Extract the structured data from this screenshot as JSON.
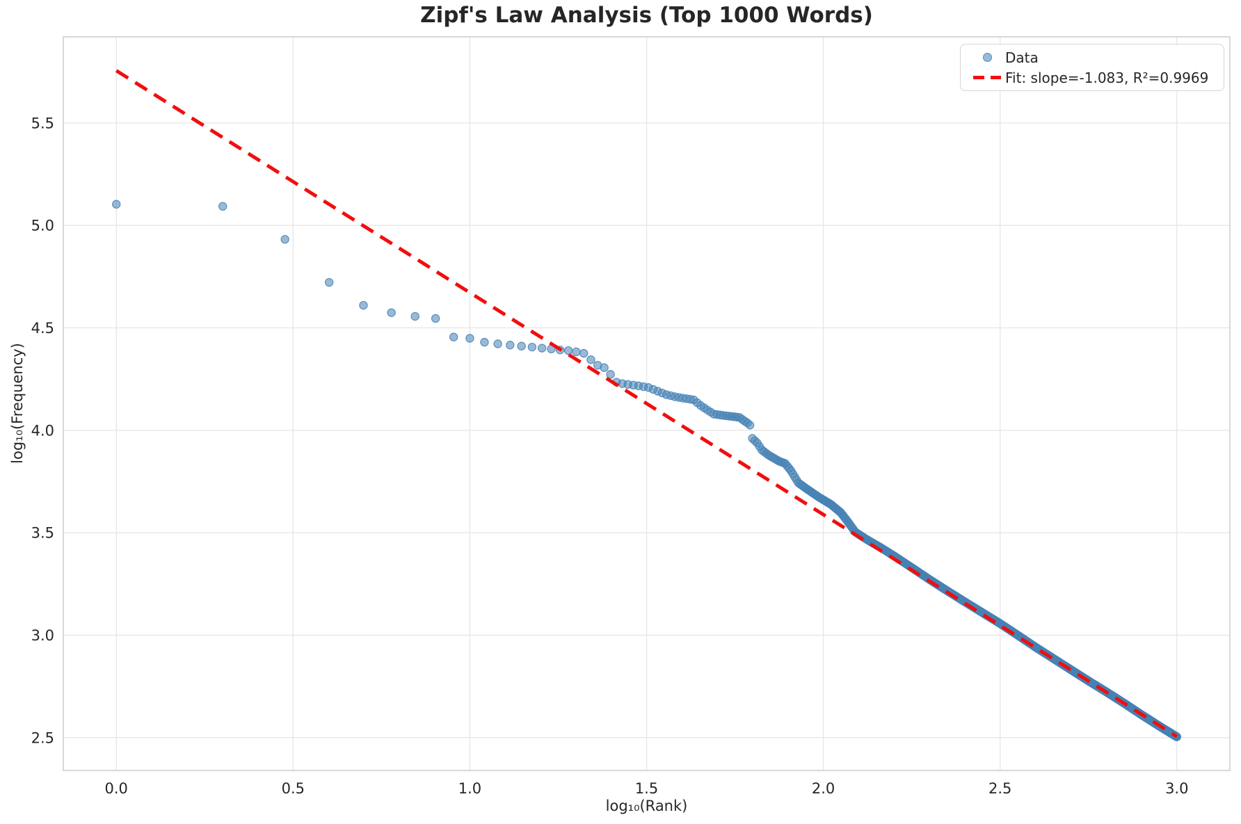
{
  "chart_data": {
    "type": "scatter",
    "title": "Zipf's Law Analysis (Top 1000 Words)",
    "xlabel": "log₁₀(Rank)",
    "ylabel": "log₁₀(Frequency)",
    "xlim": [
      -0.15,
      3.15
    ],
    "ylim": [
      2.34,
      5.92
    ],
    "grid": true,
    "x_ticks": {
      "values": [
        0.0,
        0.5,
        1.0,
        1.5,
        2.0,
        2.5,
        3.0
      ],
      "labels": [
        "0.0",
        "0.5",
        "1.0",
        "1.5",
        "2.0",
        "2.5",
        "3.0"
      ]
    },
    "y_ticks": {
      "values": [
        2.5,
        3.0,
        3.5,
        4.0,
        4.5,
        5.0,
        5.5
      ],
      "labels": [
        "2.5",
        "3.0",
        "3.5",
        "4.0",
        "4.5",
        "5.0",
        "5.5"
      ]
    },
    "legend": {
      "position": "upper right",
      "entries": [
        {
          "label": "Data",
          "marker": "circle",
          "color": "#4682B4"
        },
        {
          "label": "Fit: slope=-1.083, R²=0.9969",
          "marker": "dashed-line",
          "color": "#FF0000"
        }
      ]
    },
    "series": [
      {
        "name": "Data",
        "kind": "scatter",
        "color": "#4682B4",
        "alpha": 0.55,
        "n_points": 1000,
        "x_rule": "x = log10(rank) for rank = 1..1000",
        "anchor_points": [
          [
            0.0,
            5.103
          ],
          [
            0.301,
            5.093
          ],
          [
            0.477,
            4.932
          ],
          [
            0.602,
            4.722
          ],
          [
            0.699,
            4.61
          ],
          [
            0.778,
            4.574
          ],
          [
            0.845,
            4.556
          ],
          [
            0.903,
            4.546
          ],
          [
            0.954,
            4.455
          ],
          [
            1.0,
            4.449
          ],
          [
            1.041,
            4.43
          ],
          [
            1.079,
            4.422
          ],
          [
            1.114,
            4.416
          ],
          [
            1.146,
            4.411
          ],
          [
            1.176,
            4.406
          ],
          [
            1.204,
            4.401
          ],
          [
            1.23,
            4.397
          ],
          [
            1.255,
            4.392
          ],
          [
            1.279,
            4.389
          ],
          [
            1.301,
            4.383
          ],
          [
            1.322,
            4.376
          ],
          [
            1.342,
            4.345
          ],
          [
            1.362,
            4.317
          ],
          [
            1.38,
            4.306
          ],
          [
            1.398,
            4.273
          ],
          [
            1.415,
            4.235
          ],
          [
            1.431,
            4.228
          ],
          [
            1.447,
            4.224
          ],
          [
            1.477,
            4.217
          ],
          [
            1.505,
            4.209
          ],
          [
            1.531,
            4.191
          ],
          [
            1.556,
            4.174
          ],
          [
            1.58,
            4.164
          ],
          [
            1.602,
            4.157
          ],
          [
            1.633,
            4.149
          ],
          [
            1.653,
            4.121
          ],
          [
            1.672,
            4.099
          ],
          [
            1.69,
            4.079
          ],
          [
            1.724,
            4.071
          ],
          [
            1.763,
            4.063
          ],
          [
            1.778,
            4.044
          ],
          [
            1.792,
            4.029
          ],
          [
            1.799,
            3.961
          ],
          [
            1.813,
            3.938
          ],
          [
            1.826,
            3.904
          ],
          [
            1.845,
            3.879
          ],
          [
            1.875,
            3.849
          ],
          [
            1.892,
            3.838
          ],
          [
            1.908,
            3.804
          ],
          [
            1.929,
            3.744
          ],
          [
            1.954,
            3.713
          ],
          [
            1.987,
            3.674
          ],
          [
            2.021,
            3.639
          ],
          [
            2.049,
            3.599
          ],
          [
            2.068,
            3.557
          ],
          [
            2.09,
            3.504
          ],
          [
            2.121,
            3.469
          ],
          [
            2.161,
            3.429
          ],
          [
            2.199,
            3.388
          ],
          [
            2.25,
            3.33
          ],
          [
            2.301,
            3.271
          ],
          [
            2.35,
            3.217
          ],
          [
            2.4,
            3.163
          ],
          [
            2.45,
            3.11
          ],
          [
            2.5,
            3.057
          ],
          [
            2.55,
            3.0
          ],
          [
            2.6,
            2.942
          ],
          [
            2.65,
            2.887
          ],
          [
            2.7,
            2.832
          ],
          [
            2.75,
            2.777
          ],
          [
            2.8,
            2.724
          ],
          [
            2.85,
            2.669
          ],
          [
            2.9,
            2.612
          ],
          [
            2.95,
            2.557
          ],
          [
            3.0,
            2.504
          ]
        ]
      },
      {
        "name": "Fit",
        "kind": "line",
        "style": "dashed",
        "color": "#FF0000",
        "slope": -1.083,
        "intercept": 5.755,
        "r_squared": 0.9969,
        "x_start": 0.0,
        "x_end": 3.0
      }
    ],
    "style": {
      "background": "#ffffff",
      "grid_color": "#e7e7e7",
      "spine_color": "#cccccc",
      "tick_label_color": "#262626",
      "point_fill": "rgba(70,130,180,0.55)",
      "point_edge": "rgba(70,130,180,0.85)",
      "fit_color": "#f10e0e"
    }
  }
}
